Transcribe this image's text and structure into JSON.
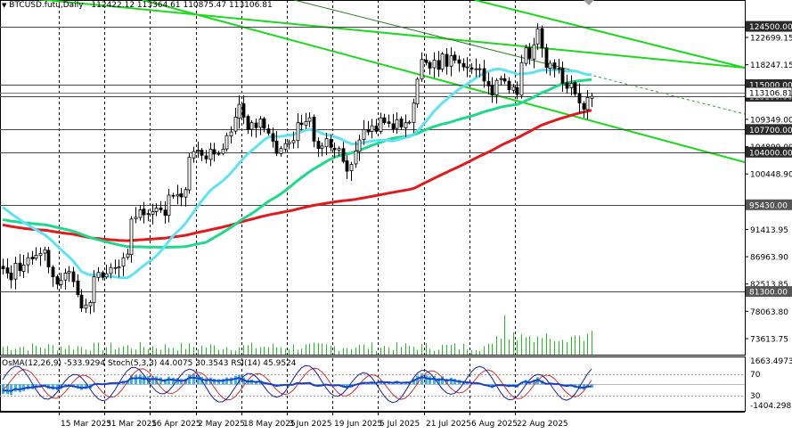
{
  "header": {
    "symbol_title": "BTCUSD.futu,Daily",
    "ohlc": "112422.12 113364.61 110875.47 113106.81"
  },
  "chart_data": {
    "type": "candlestick",
    "title": "BTCUSD.futu,Daily",
    "ohlc_readout": {
      "open": 112422.12,
      "high": 113364.61,
      "low": 110875.47,
      "close": 113106.81
    },
    "y_axis": {
      "ticks": [
        "122699.15",
        "118247.15",
        "109349.00",
        "104899.00",
        "100448.90",
        "91413.95",
        "86963.90",
        "82513.85",
        "78063.80",
        "73613.75"
      ],
      "range": [
        71000,
        128800
      ]
    },
    "highlighted_levels": [
      {
        "label": "124500.00",
        "value": 124500,
        "color": "#2b2b2b"
      },
      {
        "label": "115000.00",
        "value": 115000,
        "color": "#2b2b2b"
      },
      {
        "label": "113100.00",
        "value": 113100,
        "color": "#2b2b2b"
      },
      {
        "label": "107700.00",
        "value": 107700,
        "color": "#2b2b2b"
      },
      {
        "label": "104000.00",
        "value": 104000,
        "color": "#2b2b2b"
      },
      {
        "label": "95430.00",
        "value": 95430,
        "color": "#555555"
      },
      {
        "label": "81300.00",
        "value": 81300,
        "color": "#555555"
      }
    ],
    "price_tag": {
      "label": "113106.81",
      "value": 113106.81
    },
    "x_axis": {
      "labels": [
        "15 Mar 2025",
        "31 Mar 2025",
        "16 Apr 2025",
        "2 May 2025",
        "18 May 2025",
        "3 Jun 2025",
        "19 Jun 2025",
        "5 Jul 2025",
        "21 Jul 2025",
        "6 Aug 2025",
        "22 Aug 2025"
      ],
      "label_bar_index": [
        0,
        11,
        22,
        33,
        44,
        55,
        66,
        77,
        88,
        99,
        110
      ]
    },
    "close": [
      85000,
      84300,
      83200,
      85900,
      84700,
      85600,
      86800,
      86600,
      87200,
      87500,
      88100,
      85300,
      83700,
      82500,
      83100,
      84300,
      84600,
      82900,
      80800,
      78600,
      79100,
      79500,
      83700,
      84400,
      83600,
      84200,
      85200,
      85200,
      85300,
      86800,
      87400,
      93100,
      93400,
      94600,
      93800,
      94000,
      94300,
      94900,
      94600,
      93700,
      97000,
      96900,
      97100,
      96700,
      97900,
      103200,
      104100,
      104300,
      103500,
      102900,
      104500,
      103700,
      103800,
      104500,
      106700,
      107300,
      109700,
      111800,
      109700,
      107700,
      108800,
      108000,
      109400,
      107900,
      107100,
      105800,
      103800,
      104600,
      105400,
      105600,
      105900,
      108800,
      108500,
      109000,
      109600,
      105800,
      104600,
      105000,
      106200,
      104800,
      104400,
      104600,
      102500,
      100900,
      102000,
      104200,
      106000,
      107700,
      107300,
      108300,
      107400,
      109600,
      108800,
      108700,
      107800,
      109300,
      108100,
      108800,
      108900,
      112000,
      115900,
      119100,
      118600,
      117700,
      119000,
      117500,
      120000,
      118000,
      119700,
      119000,
      118500,
      117900,
      117900,
      117500,
      117600,
      117600,
      115600,
      114800,
      113300,
      115700,
      116000,
      115600,
      114200,
      114600,
      113400,
      118600,
      121000,
      119300,
      121500,
      124100,
      121000,
      117800,
      118500,
      117600,
      117600,
      115200,
      114400,
      115200,
      113500,
      112000,
      111000,
      112900,
      113100
    ],
    "indicators": [
      {
        "name": "MA fast",
        "color": "#5ee3f3"
      },
      {
        "name": "MA mid",
        "color": "#1ed98c"
      },
      {
        "name": "MA slow",
        "color": "#e01b1b"
      }
    ],
    "trend_channels": {
      "color": "#1ed81e"
    },
    "oscillator": {
      "label": "OsMA(12,26,9) -533.9294  Stoch(5,3,3) 44.0075 30.3543  RSI(14) 45.9524",
      "ticks": [
        "1663.4973",
        "70",
        "30",
        "-1404.2982"
      ],
      "colors": {
        "osma": "#3bb6e8",
        "stoch_main": "#1a1aa0",
        "stoch_signal": "#d03030",
        "rsi": "#1a3fd0"
      }
    }
  }
}
